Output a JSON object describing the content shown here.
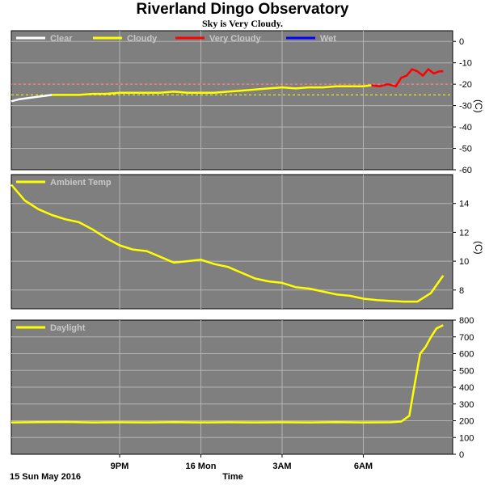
{
  "title": "Riverland Dingo Observatory",
  "subtitle": "Sky is Very Cloudy.",
  "date_label": "15 Sun May 2016",
  "xaxis_label": "Time",
  "x_ticks": [
    "9PM",
    "16 Mon",
    "3AM",
    "6AM"
  ],
  "colors": {
    "panel_bg": "#7f7f7f",
    "grid": "#b4b4b4",
    "clear": "#ffffff",
    "cloudy": "#ffff00",
    "very_cloudy": "#ff0000",
    "wet": "#0000ff",
    "threshold1": "#ff4040",
    "threshold2": "#ffff00"
  },
  "chart_data": [
    {
      "type": "line",
      "name": "sky-temperature",
      "unit": "(C)",
      "ylim": [
        -60,
        5
      ],
      "yticks": [
        0,
        -10,
        -20,
        -30,
        -40,
        -50,
        -60
      ],
      "grid": true,
      "legend_placement": "top-left",
      "legend": [
        {
          "label": "Clear",
          "color": "#ffffff"
        },
        {
          "label": "Cloudy",
          "color": "#ffff00"
        },
        {
          "label": "Very Cloudy",
          "color": "#ff0000"
        },
        {
          "label": "Wet",
          "color": "#0000ff"
        }
      ],
      "thresholds": [
        -20,
        -25
      ],
      "x_range_hours": [
        17.0,
        8.5
      ],
      "series": [
        {
          "name": "Clear",
          "color": "#ffffff",
          "x": [
            17.0,
            17.3,
            17.6,
            17.9,
            18.2,
            18.5
          ],
          "y": [
            -28,
            -27,
            -26.5,
            -26,
            -25.5,
            -25
          ]
        },
        {
          "name": "Cloudy",
          "color": "#ffff00",
          "x": [
            18.5,
            19.0,
            19.5,
            20.0,
            20.5,
            21.0,
            21.5,
            22.0,
            22.5,
            23.0,
            23.5,
            24.0,
            24.5,
            25.0,
            25.5,
            26.0,
            26.5,
            27.0,
            27.5,
            28.0,
            28.5,
            29.0,
            29.5,
            30.0,
            30.3
          ],
          "y": [
            -25,
            -25,
            -25,
            -24.5,
            -24.5,
            -24,
            -24,
            -24,
            -24,
            -23.5,
            -24,
            -24,
            -24,
            -23.5,
            -23,
            -22.5,
            -22,
            -21.5,
            -22,
            -21.5,
            -21.5,
            -21,
            -21,
            -21,
            -20.5
          ]
        },
        {
          "name": "Very Cloudy",
          "color": "#ff0000",
          "x": [
            30.3,
            30.6,
            30.9,
            31.2,
            31.4,
            31.6,
            31.8,
            32.0,
            32.2,
            32.4,
            32.6,
            32.8,
            32.95
          ],
          "y": [
            -20.5,
            -21,
            -20,
            -21,
            -17,
            -16,
            -13,
            -14,
            -16,
            -13,
            -15,
            -14,
            -14
          ]
        }
      ]
    },
    {
      "type": "line",
      "name": "ambient-temperature",
      "unit": "(C)",
      "ylim": [
        6.7,
        16
      ],
      "yticks": [
        8,
        10,
        12,
        14
      ],
      "grid": true,
      "legend_placement": "top-left",
      "legend": [
        {
          "label": "Ambient Temp",
          "color": "#ffff00"
        }
      ],
      "series": [
        {
          "name": "Ambient Temp",
          "color": "#ffff00",
          "x": [
            17.0,
            17.5,
            18.0,
            18.5,
            19.0,
            19.5,
            20.0,
            20.5,
            21.0,
            21.5,
            22.0,
            22.5,
            23.0,
            23.5,
            24.0,
            24.5,
            25.0,
            25.5,
            26.0,
            26.5,
            27.0,
            27.5,
            28.0,
            28.5,
            29.0,
            29.5,
            30.0,
            30.5,
            31.0,
            31.5,
            32.0,
            32.5,
            32.95
          ],
          "y": [
            15.3,
            14.2,
            13.6,
            13.2,
            12.9,
            12.7,
            12.2,
            11.6,
            11.1,
            10.8,
            10.7,
            10.3,
            9.9,
            10.0,
            10.1,
            9.8,
            9.6,
            9.2,
            8.8,
            8.6,
            8.5,
            8.2,
            8.1,
            7.9,
            7.7,
            7.6,
            7.4,
            7.3,
            7.25,
            7.2,
            7.2,
            7.8,
            9.0
          ]
        }
      ]
    },
    {
      "type": "line",
      "name": "daylight",
      "unit": "",
      "ylim": [
        0,
        800
      ],
      "yticks": [
        0,
        100,
        200,
        300,
        400,
        500,
        600,
        700,
        800
      ],
      "grid": true,
      "legend_placement": "top-left",
      "legend": [
        {
          "label": "Daylight",
          "color": "#ffff00"
        }
      ],
      "series": [
        {
          "name": "Daylight",
          "color": "#ffff00",
          "x": [
            17.0,
            18.0,
            19.0,
            20.0,
            21.0,
            22.0,
            23.0,
            24.0,
            25.0,
            26.0,
            27.0,
            28.0,
            29.0,
            30.0,
            31.0,
            31.4,
            31.7,
            31.9,
            32.1,
            32.3,
            32.5,
            32.7,
            32.95
          ],
          "y": [
            190,
            192,
            193,
            190,
            191,
            190,
            192,
            190,
            191,
            190,
            191,
            190,
            192,
            190,
            191,
            195,
            230,
            420,
            600,
            640,
            700,
            750,
            770
          ]
        }
      ]
    }
  ]
}
